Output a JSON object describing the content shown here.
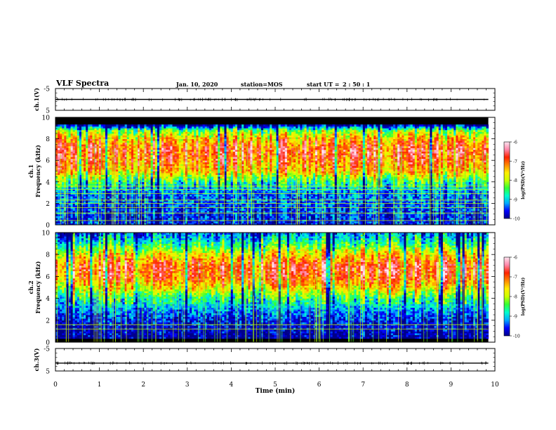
{
  "header": {
    "title": "VLF Spectra",
    "date": "Jan. 10, 2020",
    "station": "station=MOS",
    "start_label": "start UT =",
    "start_value": "2 : 50 : 1"
  },
  "colors": {
    "colormap": [
      "#000088",
      "#0000ff",
      "#00aaff",
      "#00ffcc",
      "#33ff33",
      "#ccff00",
      "#ffee00",
      "#ff8800",
      "#ff2200",
      "#ff88aa",
      "#ffe4f0"
    ],
    "background_band": "#000000",
    "trace": "#000000"
  },
  "chart_data": [
    {
      "type": "line",
      "id": "ch1-waveform",
      "ylabel": "ch.1(V)",
      "ylim": [
        -5,
        5
      ],
      "yticks": [
        "5",
        "-5"
      ],
      "xlim": [
        0,
        10
      ],
      "series": [
        {
          "values_x": [
            0,
            9.85
          ],
          "values_y": [
            0,
            0
          ]
        }
      ],
      "grid": false
    },
    {
      "type": "heatmap",
      "id": "ch1-spectrogram",
      "ylabel": "ch.1\nFrequency (kHz)",
      "ylim": [
        0,
        10
      ],
      "yticks": [
        "0",
        "2",
        "4",
        "6",
        "8",
        "10"
      ],
      "xlim": [
        0,
        10
      ],
      "data_xrange": [
        0,
        9.85
      ],
      "colorbar": {
        "label": "log(PSD)(V²/Hz)",
        "range": [
          -10,
          -6
        ],
        "ticks": [
          "-6",
          "-7",
          "-8",
          "-9",
          "-10"
        ]
      },
      "frequency_profile": [
        {
          "f": 0,
          "v": -9.6
        },
        {
          "f": 1,
          "v": -9.5
        },
        {
          "f": 2,
          "v": -9.4
        },
        {
          "f": 3,
          "v": -9.3
        },
        {
          "f": 4,
          "v": -8.6
        },
        {
          "f": 5,
          "v": -7.4
        },
        {
          "f": 6,
          "v": -7.0
        },
        {
          "f": 7,
          "v": -6.8
        },
        {
          "f": 8,
          "v": -7.4
        },
        {
          "f": 8.8,
          "v": -8.2
        },
        {
          "f": 9.3,
          "v": -10
        },
        {
          "f": 10,
          "v": -10
        }
      ],
      "persistent_lines_kHz": [
        0.4,
        1.1,
        1.6,
        2.0,
        2.3,
        2.9,
        3.3,
        3.6
      ]
    },
    {
      "type": "heatmap",
      "id": "ch2-spectrogram",
      "ylabel": "ch.2\nFrequency (kHz)",
      "ylim": [
        0,
        10
      ],
      "yticks": [
        "0",
        "2",
        "4",
        "6",
        "8",
        "10"
      ],
      "xlim": [
        0,
        10
      ],
      "data_xrange": [
        0,
        9.85
      ],
      "colorbar": {
        "label": "log(PSD)(V²/Hz)",
        "range": [
          -10,
          -6
        ],
        "ticks": [
          "-6",
          "-7",
          "-8",
          "-9",
          "-10"
        ]
      },
      "frequency_profile": [
        {
          "f": 0,
          "v": -10
        },
        {
          "f": 1,
          "v": -9.8
        },
        {
          "f": 2,
          "v": -9.6
        },
        {
          "f": 3,
          "v": -9.2
        },
        {
          "f": 4,
          "v": -8.6
        },
        {
          "f": 5,
          "v": -7.6
        },
        {
          "f": 6,
          "v": -6.9
        },
        {
          "f": 7,
          "v": -6.8
        },
        {
          "f": 8,
          "v": -7.6
        },
        {
          "f": 9,
          "v": -8.6
        },
        {
          "f": 10,
          "v": -9.3
        }
      ],
      "persistent_lines_kHz": [
        1.2,
        1.6
      ]
    },
    {
      "type": "line",
      "id": "ch3-waveform",
      "ylabel": "ch.3(V)",
      "ylim": [
        -5,
        5
      ],
      "yticks": [
        "5",
        "-5"
      ],
      "xlim": [
        0,
        10
      ],
      "series": [
        {
          "values_x": [
            0,
            9.85
          ],
          "values_y": [
            -1.5,
            -1.5
          ]
        }
      ],
      "grid": false
    }
  ],
  "xaxis": {
    "label": "Time (min)",
    "ticks": [
      "0",
      "1",
      "2",
      "3",
      "4",
      "5",
      "6",
      "7",
      "8",
      "9",
      "10"
    ]
  }
}
